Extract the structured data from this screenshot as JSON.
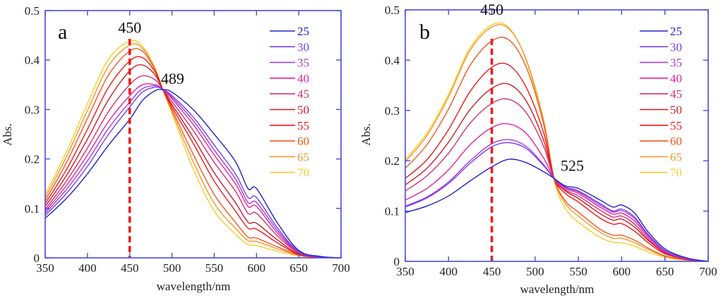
{
  "chart_data": [
    {
      "type": "line",
      "panel_label": "a",
      "title": "",
      "xlabel": "wavelength/nm",
      "ylabel": "Abs.",
      "xlim": [
        350,
        700
      ],
      "ylim": [
        0,
        0.5
      ],
      "xticks": [
        350,
        400,
        450,
        500,
        550,
        600,
        650,
        700
      ],
      "yticks": [
        0,
        0.1,
        0.2,
        0.3,
        0.4,
        0.5
      ],
      "xtick_labels": [
        "350",
        "400",
        "450",
        "500",
        "550",
        "600",
        "650",
        "700"
      ],
      "ytick_labels": [
        "0",
        "0.1",
        "0.2",
        "0.3",
        "0.4",
        "0.5"
      ],
      "grid": false,
      "legend_position": "top-right",
      "annotations": [
        {
          "text": "450",
          "x": 450,
          "y": 0.455
        },
        {
          "text": "489",
          "x": 489,
          "y": 0.352
        }
      ],
      "reference_line": {
        "x": 450,
        "style": "dashed",
        "color": "#ee1c1c"
      },
      "x": [
        350,
        375,
        400,
        425,
        450,
        465,
        480,
        489,
        500,
        525,
        550,
        575,
        590,
        600,
        625,
        650,
        675,
        700
      ],
      "series": [
        {
          "name": "25",
          "color": "#2222cc",
          "values": [
            0.08,
            0.12,
            0.17,
            0.228,
            0.28,
            0.318,
            0.338,
            0.34,
            0.335,
            0.3,
            0.25,
            0.195,
            0.14,
            0.14,
            0.07,
            0.015,
            0.003,
            0.0
          ]
        },
        {
          "name": "30",
          "color": "#7a3ee8",
          "values": [
            0.086,
            0.13,
            0.185,
            0.25,
            0.305,
            0.335,
            0.345,
            0.341,
            0.328,
            0.285,
            0.228,
            0.17,
            0.122,
            0.122,
            0.06,
            0.013,
            0.003,
            0.0
          ]
        },
        {
          "name": "35",
          "color": "#a23ee0",
          "values": [
            0.09,
            0.138,
            0.196,
            0.262,
            0.315,
            0.342,
            0.348,
            0.341,
            0.325,
            0.278,
            0.218,
            0.16,
            0.112,
            0.112,
            0.055,
            0.012,
            0.002,
            0.0
          ]
        },
        {
          "name": "40",
          "color": "#e8229a",
          "values": [
            0.094,
            0.146,
            0.208,
            0.276,
            0.328,
            0.35,
            0.35,
            0.341,
            0.322,
            0.27,
            0.208,
            0.15,
            0.104,
            0.104,
            0.05,
            0.011,
            0.002,
            0.0
          ]
        },
        {
          "name": "45",
          "color": "#d8306a",
          "values": [
            0.098,
            0.155,
            0.222,
            0.296,
            0.35,
            0.368,
            0.36,
            0.341,
            0.316,
            0.258,
            0.193,
            0.135,
            0.09,
            0.09,
            0.044,
            0.01,
            0.002,
            0.0
          ]
        },
        {
          "name": "50",
          "color": "#c81e2a",
          "values": [
            0.104,
            0.166,
            0.24,
            0.32,
            0.378,
            0.39,
            0.37,
            0.341,
            0.31,
            0.244,
            0.172,
            0.112,
            0.072,
            0.07,
            0.036,
            0.008,
            0.002,
            0.0
          ]
        },
        {
          "name": "55",
          "color": "#f01818",
          "values": [
            0.11,
            0.178,
            0.26,
            0.345,
            0.398,
            0.405,
            0.376,
            0.341,
            0.305,
            0.232,
            0.155,
            0.095,
            0.06,
            0.058,
            0.03,
            0.007,
            0.001,
            0.0
          ]
        },
        {
          "name": "60",
          "color": "#f05a1e",
          "values": [
            0.116,
            0.192,
            0.282,
            0.37,
            0.418,
            0.418,
            0.38,
            0.341,
            0.3,
            0.21,
            0.128,
            0.072,
            0.042,
            0.04,
            0.022,
            0.006,
            0.001,
            0.0
          ]
        },
        {
          "name": "65",
          "color": "#f5962a",
          "values": [
            0.122,
            0.204,
            0.298,
            0.388,
            0.43,
            0.424,
            0.382,
            0.341,
            0.296,
            0.195,
            0.11,
            0.06,
            0.035,
            0.033,
            0.018,
            0.005,
            0.001,
            0.0
          ]
        },
        {
          "name": "70",
          "color": "#f5cf2a",
          "values": [
            0.128,
            0.214,
            0.312,
            0.402,
            0.438,
            0.428,
            0.384,
            0.341,
            0.292,
            0.18,
            0.095,
            0.048,
            0.027,
            0.025,
            0.013,
            0.004,
            0.001,
            0.0
          ]
        }
      ]
    },
    {
      "type": "line",
      "panel_label": "b",
      "title": "",
      "xlabel": "wavelength/nm",
      "ylabel": "Abs.",
      "xlim": [
        350,
        700
      ],
      "ylim": [
        0,
        0.5
      ],
      "xticks": [
        350,
        400,
        450,
        500,
        550,
        600,
        650,
        700
      ],
      "yticks": [
        0,
        0.1,
        0.2,
        0.3,
        0.4,
        0.5
      ],
      "xtick_labels": [
        "350",
        "400",
        "450",
        "500",
        "550",
        "600",
        "650",
        "700"
      ],
      "ytick_labels": [
        "0",
        "0.1",
        "0.2",
        "0.3",
        "0.4",
        "0.5"
      ],
      "grid": false,
      "legend_position": "top-right",
      "annotations": [
        {
          "text": "450",
          "x": 450,
          "y": 0.49
        },
        {
          "text": "525",
          "x": 525,
          "y": 0.18
        }
      ],
      "reference_line": {
        "x": 450,
        "style": "dashed",
        "color": "#ee1c1c"
      },
      "x": [
        350,
        375,
        400,
        425,
        450,
        470,
        490,
        510,
        522,
        535,
        550,
        575,
        590,
        600,
        615,
        630,
        650,
        675,
        700
      ],
      "series": [
        {
          "name": "25",
          "color": "#2222cc",
          "values": [
            0.097,
            0.11,
            0.13,
            0.16,
            0.188,
            0.203,
            0.196,
            0.178,
            0.165,
            0.15,
            0.145,
            0.122,
            0.108,
            0.112,
            0.096,
            0.06,
            0.025,
            0.007,
            0.0
          ]
        },
        {
          "name": "30",
          "color": "#7a3ee8",
          "values": [
            0.108,
            0.126,
            0.155,
            0.195,
            0.228,
            0.236,
            0.224,
            0.19,
            0.165,
            0.148,
            0.14,
            0.115,
            0.1,
            0.104,
            0.088,
            0.055,
            0.022,
            0.006,
            0.0
          ]
        },
        {
          "name": "35",
          "color": "#a23ee0",
          "values": [
            0.11,
            0.128,
            0.158,
            0.2,
            0.234,
            0.242,
            0.228,
            0.192,
            0.165,
            0.147,
            0.138,
            0.112,
            0.098,
            0.101,
            0.085,
            0.053,
            0.021,
            0.006,
            0.0
          ]
        },
        {
          "name": "40",
          "color": "#e8229a",
          "values": [
            0.122,
            0.145,
            0.182,
            0.232,
            0.266,
            0.273,
            0.254,
            0.205,
            0.165,
            0.145,
            0.135,
            0.108,
            0.094,
            0.096,
            0.08,
            0.05,
            0.02,
            0.005,
            0.0
          ]
        },
        {
          "name": "45",
          "color": "#d8306a",
          "values": [
            0.14,
            0.17,
            0.215,
            0.275,
            0.314,
            0.322,
            0.295,
            0.228,
            0.165,
            0.142,
            0.13,
            0.102,
            0.088,
            0.09,
            0.074,
            0.046,
            0.018,
            0.005,
            0.0
          ]
        },
        {
          "name": "50",
          "color": "#c81e2a",
          "values": [
            0.152,
            0.185,
            0.237,
            0.302,
            0.344,
            0.352,
            0.318,
            0.24,
            0.165,
            0.14,
            0.125,
            0.095,
            0.082,
            0.084,
            0.068,
            0.043,
            0.017,
            0.004,
            0.0
          ]
        },
        {
          "name": "55",
          "color": "#f01818",
          "values": [
            0.165,
            0.202,
            0.262,
            0.338,
            0.386,
            0.39,
            0.345,
            0.255,
            0.165,
            0.135,
            0.118,
            0.086,
            0.074,
            0.075,
            0.06,
            0.038,
            0.015,
            0.004,
            0.0
          ]
        },
        {
          "name": "60",
          "color": "#f05a1e",
          "values": [
            0.185,
            0.232,
            0.303,
            0.39,
            0.438,
            0.44,
            0.385,
            0.272,
            0.165,
            0.12,
            0.098,
            0.064,
            0.052,
            0.052,
            0.042,
            0.027,
            0.011,
            0.003,
            0.0
          ]
        },
        {
          "name": "65",
          "color": "#f5962a",
          "values": [
            0.198,
            0.25,
            0.327,
            0.42,
            0.466,
            0.462,
            0.4,
            0.28,
            0.165,
            0.115,
            0.09,
            0.058,
            0.046,
            0.046,
            0.037,
            0.024,
            0.01,
            0.003,
            0.0
          ]
        },
        {
          "name": "70",
          "color": "#f5cf2a",
          "values": [
            0.202,
            0.255,
            0.332,
            0.425,
            0.47,
            0.464,
            0.398,
            0.272,
            0.16,
            0.105,
            0.078,
            0.048,
            0.038,
            0.037,
            0.03,
            0.019,
            0.008,
            0.002,
            0.0
          ]
        }
      ]
    }
  ]
}
